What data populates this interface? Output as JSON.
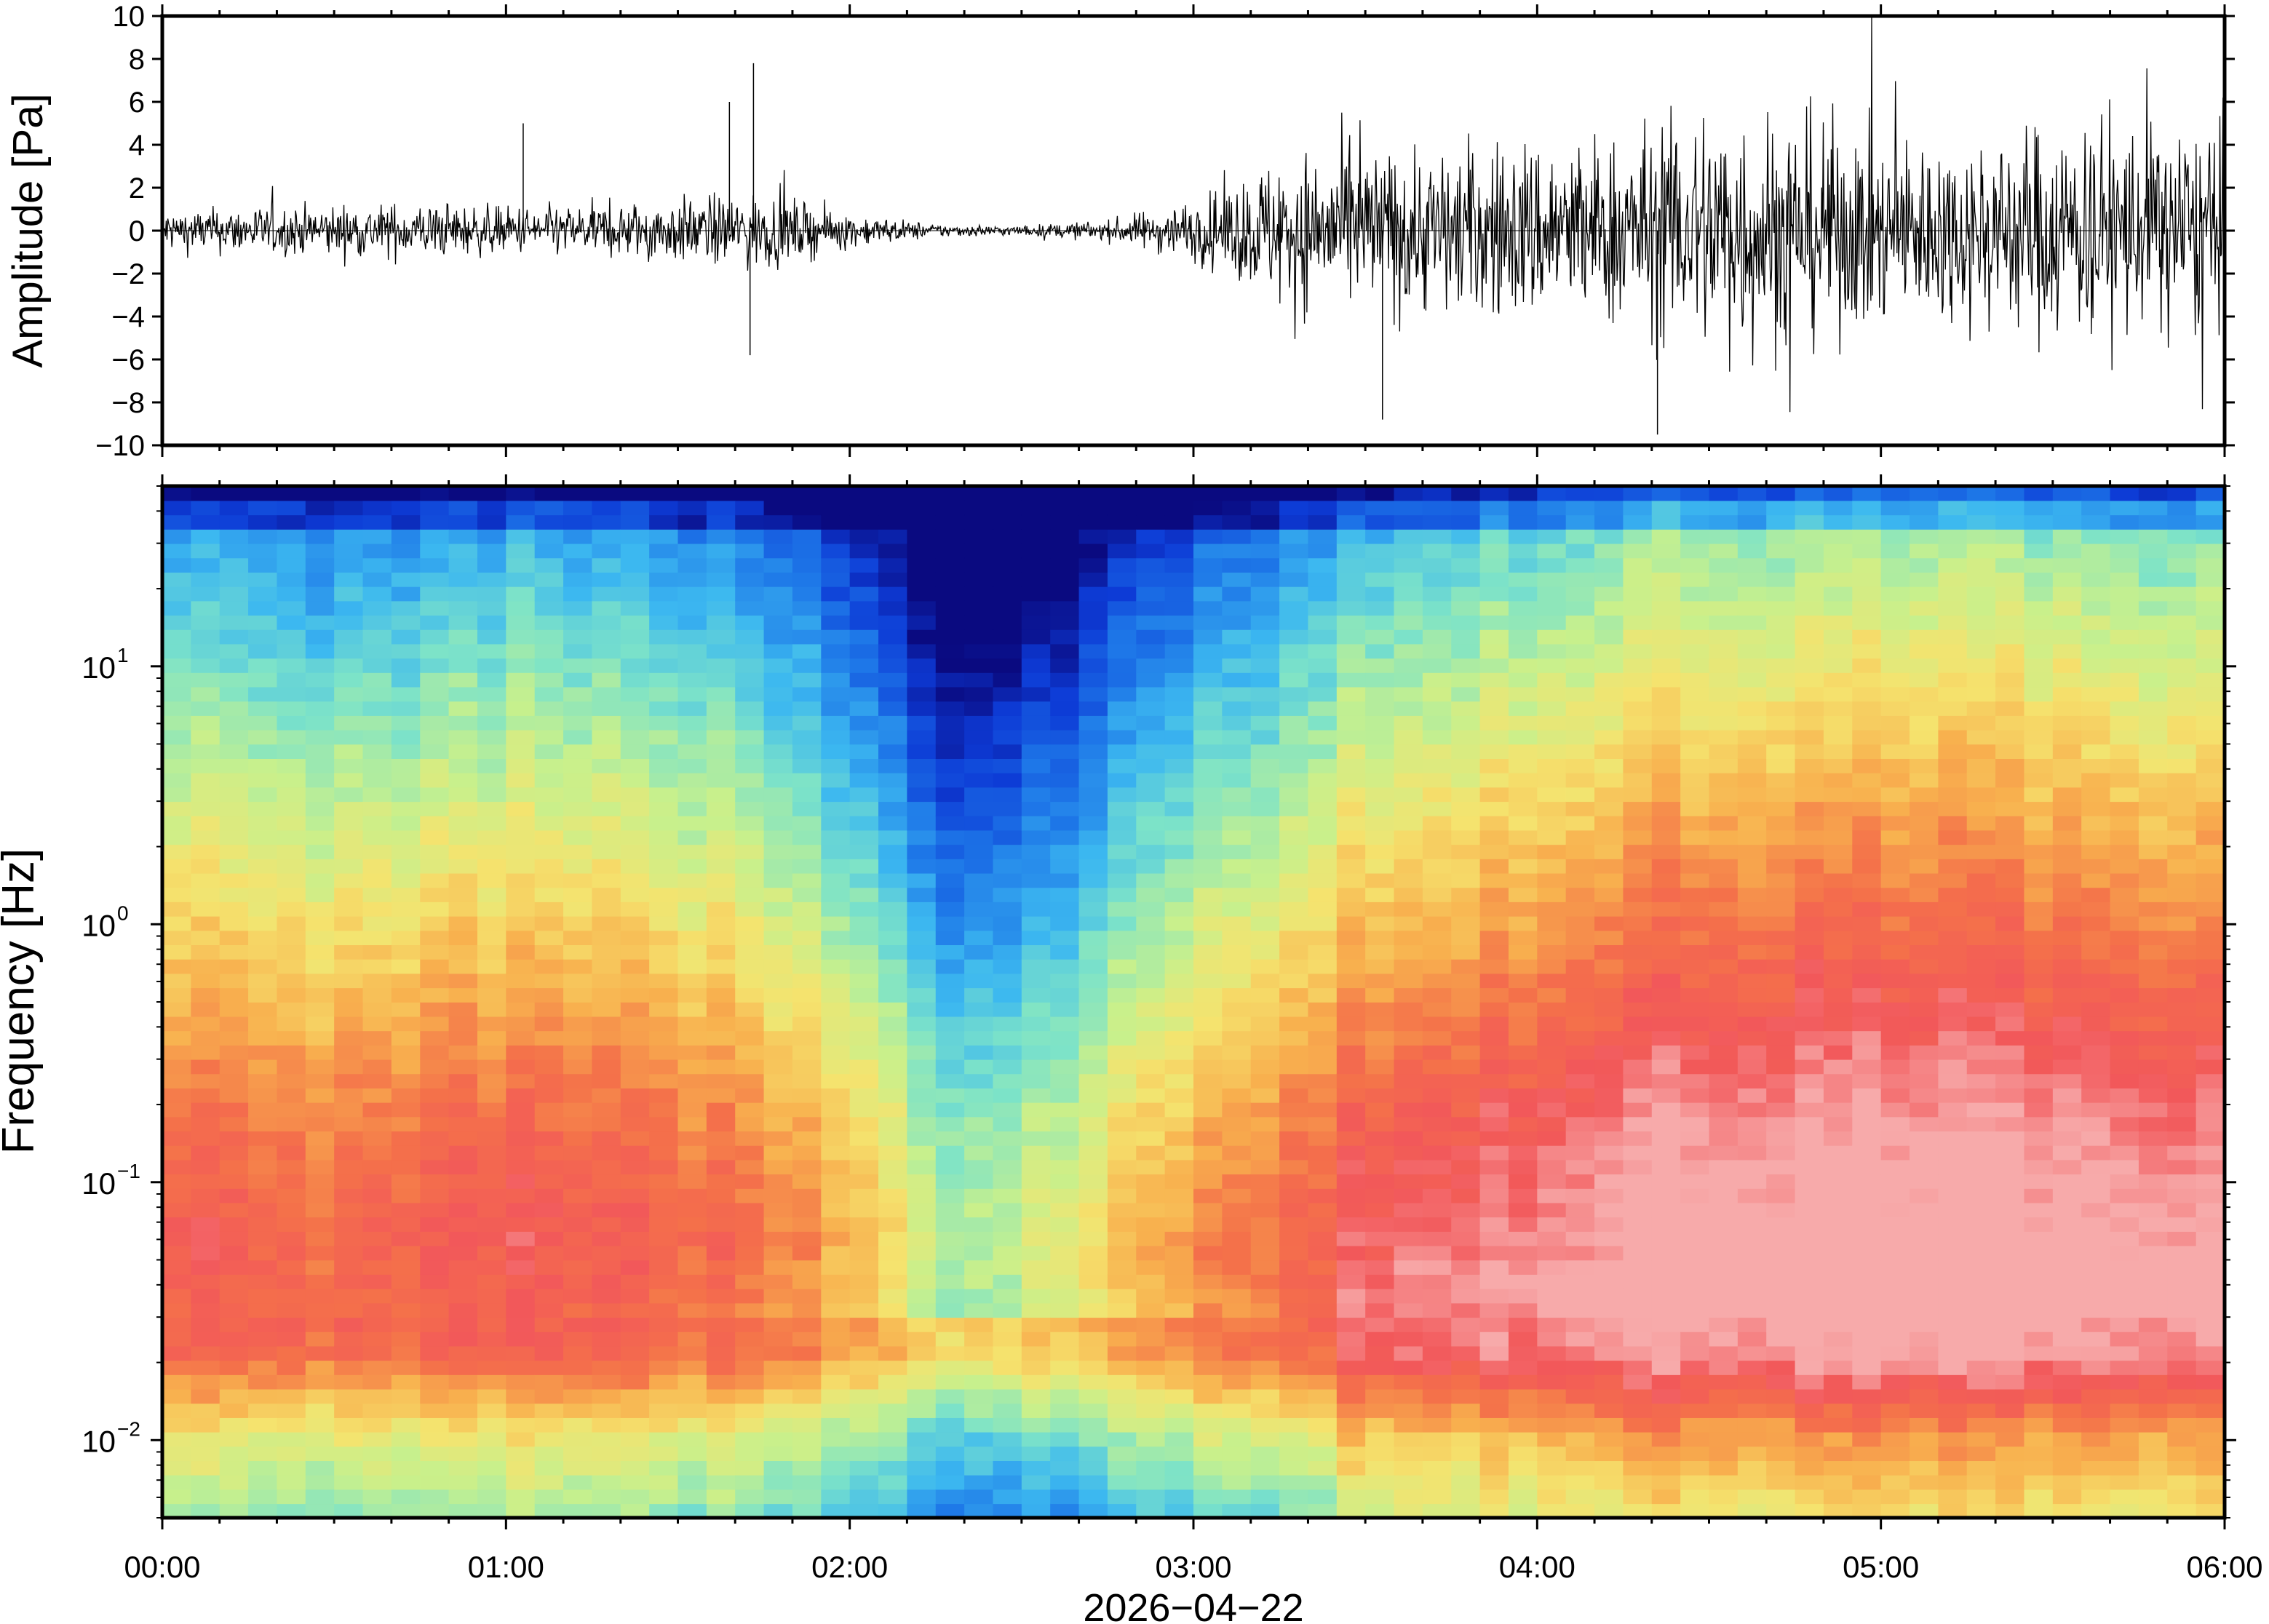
{
  "chart_data": [
    {
      "type": "line",
      "panel": "waveform",
      "ylabel": "Amplitude [Pa]",
      "ylim": [
        -10,
        10
      ],
      "yticks": [
        -10,
        -8,
        -6,
        -4,
        -2,
        0,
        2,
        4,
        6,
        8,
        10
      ],
      "ytick_labels": [
        "−10",
        "−8",
        "−6",
        "−4",
        "−2",
        "0",
        "2",
        "4",
        "6",
        "8",
        "10"
      ],
      "xlim_hours": [
        0,
        6
      ],
      "line_color": "#000000",
      "envelope": {
        "time_hours": [
          0.0,
          0.25,
          0.5,
          0.75,
          1.0,
          1.25,
          1.5,
          1.75,
          2.0,
          2.25,
          2.5,
          2.75,
          3.0,
          3.1,
          3.25,
          3.5,
          3.75,
          4.0,
          4.25,
          4.5,
          4.75,
          5.0,
          5.25,
          5.5,
          5.75,
          6.0
        ],
        "amplitude_pa": [
          1.2,
          1.4,
          1.5,
          1.6,
          1.4,
          1.5,
          1.9,
          2.2,
          1.0,
          0.4,
          0.3,
          0.6,
          1.8,
          2.6,
          4.5,
          4.8,
          5.0,
          5.5,
          5.5,
          7.5,
          7.0,
          5.5,
          5.5,
          6.5,
          6.5,
          6.0
        ]
      },
      "spikes": [
        {
          "time_hours": 1.05,
          "amplitude_pa": 5.0
        },
        {
          "time_hours": 1.65,
          "amplitude_pa": 6.0
        },
        {
          "time_hours": 1.72,
          "amplitude_pa": 7.8
        },
        {
          "time_hours": 1.71,
          "amplitude_pa": -5.8
        },
        {
          "time_hours": 3.55,
          "amplitude_pa": -8.8
        },
        {
          "time_hours": 4.35,
          "amplitude_pa": -9.5
        }
      ]
    },
    {
      "type": "heatmap",
      "panel": "spectrogram",
      "ylabel": "Frequency [Hz]",
      "yscale": "log",
      "ylim_hz": [
        0.005,
        50
      ],
      "yticks_hz": [
        0.01,
        0.1,
        1,
        10
      ],
      "ytick_labels": [
        {
          "base": "10",
          "exp": "−2"
        },
        {
          "base": "10",
          "exp": "−1"
        },
        {
          "base": "10",
          "exp": "0"
        },
        {
          "base": "10",
          "exp": "1"
        }
      ],
      "xlabel": "2026−04−22",
      "xlim_hours": [
        0,
        6
      ],
      "xticks_hours": [
        0,
        1,
        2,
        3,
        4,
        5,
        6
      ],
      "xtick_labels": [
        "00:00",
        "01:00",
        "02:00",
        "03:00",
        "04:00",
        "05:00",
        "06:00"
      ],
      "colormap": [
        "#0a0a80",
        "#0d3bd6",
        "#1e78e8",
        "#3cb8f0",
        "#7de3c8",
        "#c8f08c",
        "#f5e36e",
        "#f8b04e",
        "#f4714a",
        "#f2585a",
        "#f7aaaa"
      ],
      "time_bins": 72,
      "freq_bins": 72,
      "quietness": {
        "time_hours": [
          0.0,
          0.5,
          1.0,
          1.5,
          1.9,
          2.1,
          2.3,
          2.45,
          2.6,
          2.8,
          3.0,
          3.2,
          3.5,
          4.0,
          4.5,
          5.0,
          5.5,
          6.0
        ],
        "value": [
          0.06,
          0.1,
          0.05,
          0.08,
          0.18,
          0.3,
          0.46,
          0.46,
          0.38,
          0.25,
          0.2,
          0.12,
          0.02,
          -0.05,
          -0.12,
          -0.12,
          -0.1,
          -0.06
        ]
      }
    }
  ]
}
